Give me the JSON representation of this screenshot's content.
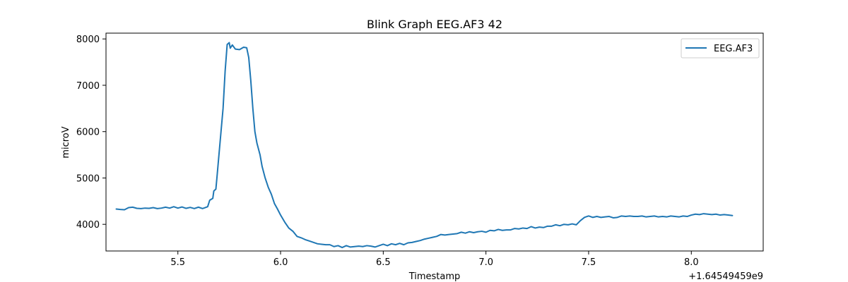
{
  "chart_data": {
    "type": "line",
    "title": "Blink Graph EEG.AF3 42",
    "xlabel": "Timestamp",
    "ylabel": "microV",
    "x_offset_label": "+1.64549459e9",
    "xlim": [
      5.15,
      8.35
    ],
    "ylim": [
      3425,
      8125
    ],
    "x_ticks": [
      5.5,
      6.0,
      6.5,
      7.0,
      7.5,
      8.0
    ],
    "x_tick_labels": [
      "5.5",
      "6.0",
      "6.5",
      "7.0",
      "7.5",
      "8.0"
    ],
    "y_ticks": [
      4000,
      5000,
      6000,
      7000,
      8000
    ],
    "y_tick_labels": [
      "4000",
      "5000",
      "6000",
      "7000",
      "8000"
    ],
    "grid": false,
    "legend_position": "top-right",
    "series": [
      {
        "name": "EEG.AF3",
        "color": "#1f77b4",
        "points": [
          [
            5.2,
            4330
          ],
          [
            5.22,
            4320
          ],
          [
            5.24,
            4315
          ],
          [
            5.26,
            4360
          ],
          [
            5.28,
            4370
          ],
          [
            5.3,
            4345
          ],
          [
            5.32,
            4340
          ],
          [
            5.34,
            4350
          ],
          [
            5.36,
            4345
          ],
          [
            5.38,
            4360
          ],
          [
            5.4,
            4340
          ],
          [
            5.42,
            4350
          ],
          [
            5.44,
            4370
          ],
          [
            5.46,
            4350
          ],
          [
            5.48,
            4380
          ],
          [
            5.5,
            4350
          ],
          [
            5.52,
            4375
          ],
          [
            5.54,
            4345
          ],
          [
            5.56,
            4365
          ],
          [
            5.58,
            4340
          ],
          [
            5.6,
            4370
          ],
          [
            5.62,
            4340
          ],
          [
            5.63,
            4355
          ],
          [
            5.645,
            4380
          ],
          [
            5.655,
            4520
          ],
          [
            5.67,
            4560
          ],
          [
            5.675,
            4720
          ],
          [
            5.685,
            4760
          ],
          [
            5.69,
            5000
          ],
          [
            5.7,
            5500
          ],
          [
            5.71,
            6000
          ],
          [
            5.72,
            6500
          ],
          [
            5.73,
            7300
          ],
          [
            5.74,
            7880
          ],
          [
            5.75,
            7920
          ],
          [
            5.755,
            7800
          ],
          [
            5.765,
            7870
          ],
          [
            5.78,
            7780
          ],
          [
            5.8,
            7770
          ],
          [
            5.82,
            7820
          ],
          [
            5.835,
            7810
          ],
          [
            5.845,
            7600
          ],
          [
            5.855,
            7100
          ],
          [
            5.865,
            6500
          ],
          [
            5.875,
            6000
          ],
          [
            5.885,
            5750
          ],
          [
            5.9,
            5500
          ],
          [
            5.91,
            5250
          ],
          [
            5.925,
            5000
          ],
          [
            5.94,
            4800
          ],
          [
            5.955,
            4650
          ],
          [
            5.97,
            4450
          ],
          [
            5.985,
            4330
          ],
          [
            6.0,
            4200
          ],
          [
            6.02,
            4050
          ],
          [
            6.04,
            3920
          ],
          [
            6.06,
            3850
          ],
          [
            6.08,
            3740
          ],
          [
            6.1,
            3710
          ],
          [
            6.12,
            3670
          ],
          [
            6.14,
            3640
          ],
          [
            6.16,
            3610
          ],
          [
            6.18,
            3580
          ],
          [
            6.2,
            3570
          ],
          [
            6.22,
            3560
          ],
          [
            6.24,
            3560
          ],
          [
            6.26,
            3520
          ],
          [
            6.28,
            3540
          ],
          [
            6.3,
            3500
          ],
          [
            6.32,
            3540
          ],
          [
            6.34,
            3510
          ],
          [
            6.36,
            3520
          ],
          [
            6.38,
            3530
          ],
          [
            6.4,
            3520
          ],
          [
            6.42,
            3540
          ],
          [
            6.44,
            3530
          ],
          [
            6.46,
            3510
          ],
          [
            6.48,
            3540
          ],
          [
            6.5,
            3570
          ],
          [
            6.52,
            3540
          ],
          [
            6.54,
            3580
          ],
          [
            6.56,
            3560
          ],
          [
            6.58,
            3590
          ],
          [
            6.6,
            3560
          ],
          [
            6.62,
            3600
          ],
          [
            6.64,
            3610
          ],
          [
            6.66,
            3630
          ],
          [
            6.68,
            3650
          ],
          [
            6.7,
            3680
          ],
          [
            6.72,
            3700
          ],
          [
            6.74,
            3720
          ],
          [
            6.76,
            3740
          ],
          [
            6.78,
            3780
          ],
          [
            6.8,
            3770
          ],
          [
            6.82,
            3780
          ],
          [
            6.84,
            3790
          ],
          [
            6.86,
            3800
          ],
          [
            6.88,
            3830
          ],
          [
            6.9,
            3810
          ],
          [
            6.92,
            3840
          ],
          [
            6.94,
            3820
          ],
          [
            6.96,
            3840
          ],
          [
            6.98,
            3850
          ],
          [
            7.0,
            3830
          ],
          [
            7.02,
            3870
          ],
          [
            7.04,
            3860
          ],
          [
            7.06,
            3890
          ],
          [
            7.08,
            3870
          ],
          [
            7.1,
            3880
          ],
          [
            7.12,
            3880
          ],
          [
            7.14,
            3910
          ],
          [
            7.16,
            3900
          ],
          [
            7.18,
            3920
          ],
          [
            7.2,
            3910
          ],
          [
            7.22,
            3950
          ],
          [
            7.24,
            3920
          ],
          [
            7.26,
            3940
          ],
          [
            7.28,
            3930
          ],
          [
            7.3,
            3960
          ],
          [
            7.32,
            3960
          ],
          [
            7.34,
            3990
          ],
          [
            7.36,
            3970
          ],
          [
            7.38,
            4000
          ],
          [
            7.4,
            3990
          ],
          [
            7.42,
            4010
          ],
          [
            7.44,
            3990
          ],
          [
            7.46,
            4080
          ],
          [
            7.48,
            4150
          ],
          [
            7.5,
            4180
          ],
          [
            7.52,
            4150
          ],
          [
            7.54,
            4170
          ],
          [
            7.56,
            4150
          ],
          [
            7.58,
            4160
          ],
          [
            7.6,
            4170
          ],
          [
            7.62,
            4140
          ],
          [
            7.64,
            4150
          ],
          [
            7.66,
            4180
          ],
          [
            7.68,
            4170
          ],
          [
            7.7,
            4180
          ],
          [
            7.72,
            4170
          ],
          [
            7.74,
            4170
          ],
          [
            7.76,
            4180
          ],
          [
            7.78,
            4160
          ],
          [
            7.8,
            4170
          ],
          [
            7.82,
            4180
          ],
          [
            7.84,
            4160
          ],
          [
            7.86,
            4170
          ],
          [
            7.88,
            4160
          ],
          [
            7.9,
            4180
          ],
          [
            7.92,
            4170
          ],
          [
            7.94,
            4160
          ],
          [
            7.96,
            4180
          ],
          [
            7.98,
            4170
          ],
          [
            8.0,
            4200
          ],
          [
            8.02,
            4220
          ],
          [
            8.04,
            4210
          ],
          [
            8.06,
            4230
          ],
          [
            8.08,
            4220
          ],
          [
            8.1,
            4210
          ],
          [
            8.12,
            4220
          ],
          [
            8.14,
            4200
          ],
          [
            8.16,
            4210
          ],
          [
            8.18,
            4200
          ],
          [
            8.2,
            4190
          ]
        ]
      }
    ]
  }
}
